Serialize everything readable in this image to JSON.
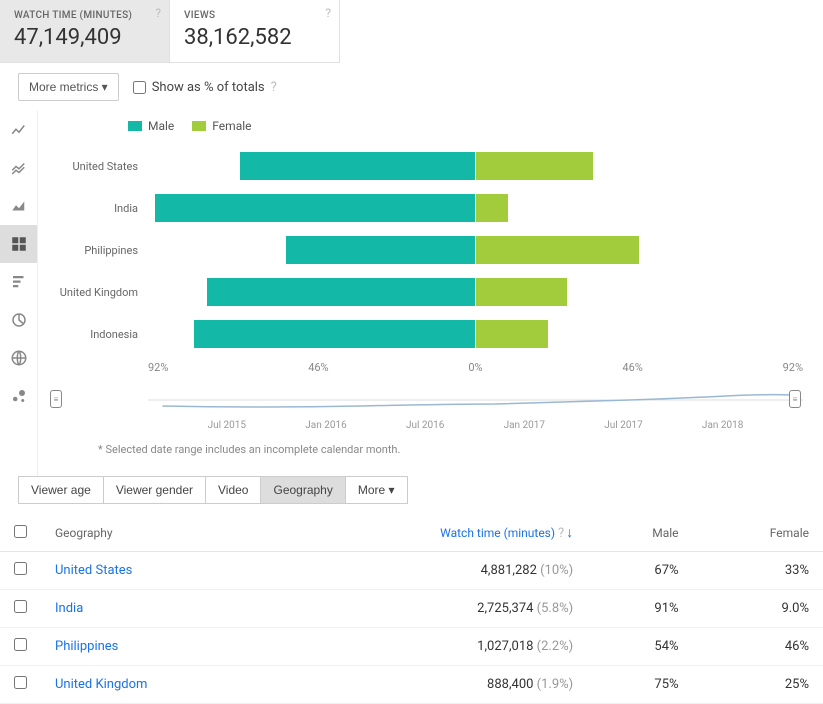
{
  "cards": [
    {
      "label": "WATCH TIME (MINUTES)",
      "value": "47,149,409",
      "active": true
    },
    {
      "label": "VIEWS",
      "value": "38,162,582",
      "active": false
    }
  ],
  "controls": {
    "more_metrics": "More metrics",
    "show_as_pct": "Show as % of totals"
  },
  "chart": {
    "legend": [
      {
        "label": "Male",
        "color": "#14b8a6"
      },
      {
        "label": "Female",
        "color": "#a3cc3c"
      }
    ],
    "male_color": "#14b8a6",
    "female_color": "#a3cc3c",
    "axis_labels": [
      "92%",
      "46%",
      "0%",
      "46%",
      "92%"
    ],
    "rows": [
      {
        "label": "United States",
        "male_start": 14,
        "male_end": 50,
        "female_end": 68
      },
      {
        "label": "India",
        "male_start": 1,
        "male_end": 50,
        "female_end": 55
      },
      {
        "label": "Philippines",
        "male_start": 21,
        "male_end": 50,
        "female_end": 75
      },
      {
        "label": "United Kingdom",
        "male_start": 9,
        "male_end": 50,
        "female_end": 64
      },
      {
        "label": "Indonesia",
        "male_start": 7,
        "male_end": 50,
        "female_end": 61
      }
    ]
  },
  "timeline_labels": [
    "Jul 2015",
    "Jan 2016",
    "Jul 2016",
    "Jan 2017",
    "Jul 2017",
    "Jan 2018"
  ],
  "footnote": "* Selected date range includes an incomplete calendar month.",
  "tabs": [
    {
      "label": "Viewer age",
      "active": false
    },
    {
      "label": "Viewer gender",
      "active": false
    },
    {
      "label": "Video",
      "active": false
    },
    {
      "label": "Geography",
      "active": true
    },
    {
      "label": "More",
      "active": false,
      "dropdown": true
    }
  ],
  "table": {
    "headers": {
      "geography": "Geography",
      "watch_time": "Watch time (minutes)",
      "male": "Male",
      "female": "Female"
    },
    "rows": [
      {
        "geography": "United States",
        "watch": "4,881,282",
        "pct": "(10%)",
        "male": "67%",
        "female": "33%"
      },
      {
        "geography": "India",
        "watch": "2,725,374",
        "pct": "(5.8%)",
        "male": "91%",
        "female": "9.0%"
      },
      {
        "geography": "Philippines",
        "watch": "1,027,018",
        "pct": "(2.2%)",
        "male": "54%",
        "female": "46%"
      },
      {
        "geography": "United Kingdom",
        "watch": "888,400",
        "pct": "(1.9%)",
        "male": "75%",
        "female": "25%"
      }
    ]
  }
}
